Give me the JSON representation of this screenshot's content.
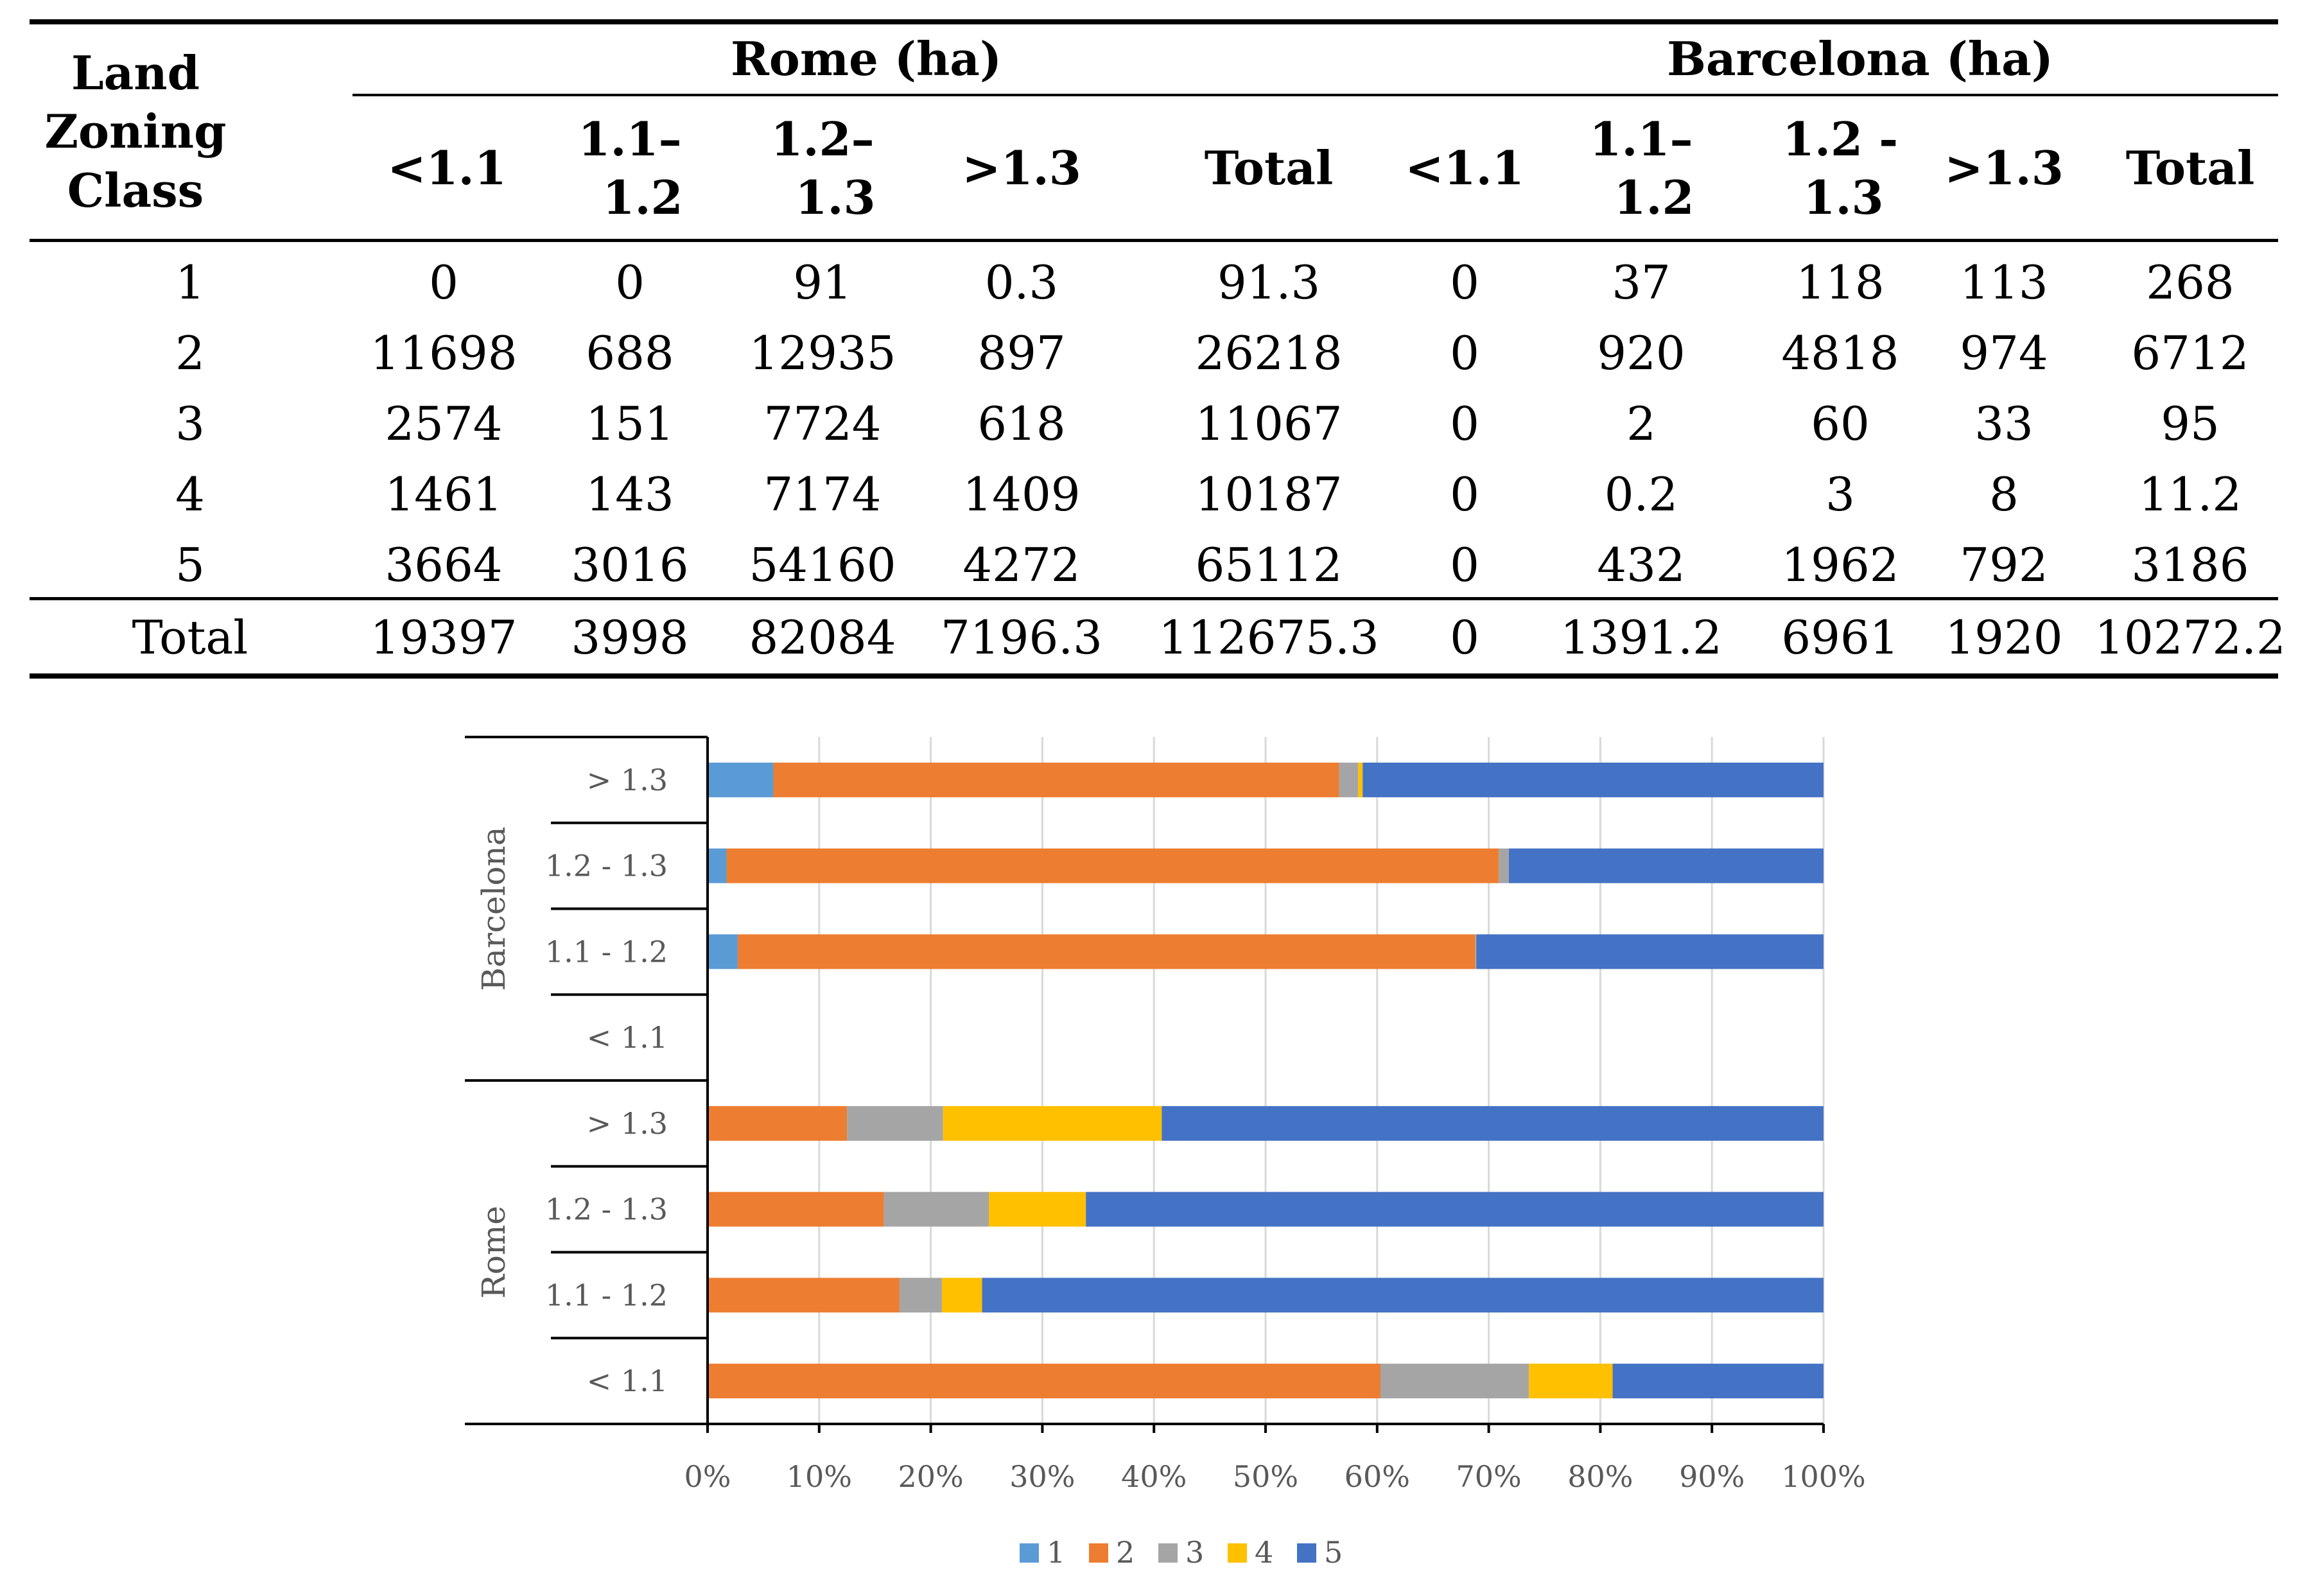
{
  "table": {
    "header": {
      "row_label": [
        "Land",
        "Zoning",
        "Class"
      ],
      "rome": "Rome (ha)",
      "barcelona": "Barcelona (ha)",
      "rome_cols": [
        [
          "<1.1"
        ],
        [
          "1.1–",
          "1.2"
        ],
        [
          "1.2–",
          "1.3"
        ],
        [
          ">1.3"
        ],
        [
          "Total"
        ]
      ],
      "barcelona_cols": [
        [
          "<1.1"
        ],
        [
          "1.1–",
          "1.2"
        ],
        [
          "1.2 -",
          "1.3"
        ],
        [
          ">1.3"
        ],
        [
          "Total"
        ]
      ]
    },
    "rows": [
      [
        "1",
        "0",
        "0",
        "91",
        "0.3",
        "91.3",
        "0",
        "37",
        "118",
        "113",
        "268"
      ],
      [
        "2",
        "11698",
        "688",
        "12935",
        "897",
        "26218",
        "0",
        "920",
        "4818",
        "974",
        "6712"
      ],
      [
        "3",
        "2574",
        "151",
        "7724",
        "618",
        "11067",
        "0",
        "2",
        "60",
        "33",
        "95"
      ],
      [
        "4",
        "1461",
        "143",
        "7174",
        "1409",
        "10187",
        "0",
        "0.2",
        "3",
        "8",
        "11.2"
      ],
      [
        "5",
        "3664",
        "3016",
        "54160",
        "4272",
        "65112",
        "0",
        "432",
        "1962",
        "792",
        "3186"
      ]
    ],
    "total_row": [
      "Total",
      "19397",
      "3998",
      "82084",
      "7196.3",
      "112675.3",
      "0",
      "1391.2",
      "6961",
      "1920",
      "10272.2"
    ]
  },
  "chart_data": {
    "type": "bar",
    "orientation": "horizontal",
    "stacking": "percent",
    "title": "",
    "xlabel": "",
    "ylabel": "",
    "xlim": [
      0,
      100
    ],
    "x_ticks": [
      "0%",
      "10%",
      "20%",
      "30%",
      "40%",
      "50%",
      "60%",
      "70%",
      "80%",
      "90%",
      "100%"
    ],
    "groups": [
      {
        "name": "Barcelona",
        "categories": [
          "> 1.3",
          "1.2 - 1.3",
          "1.1 - 1.2",
          "< 1.1"
        ]
      },
      {
        "name": "Rome",
        "categories": [
          "> 1.3",
          "1.2 - 1.3",
          "1.1 - 1.2",
          "< 1.1"
        ]
      }
    ],
    "categories": [
      "Barcelona > 1.3",
      "Barcelona 1.2 - 1.3",
      "Barcelona 1.1 - 1.2",
      "Barcelona < 1.1",
      "Rome > 1.3",
      "Rome 1.2 - 1.3",
      "Rome 1.1 - 1.2",
      "Rome < 1.1"
    ],
    "series": [
      {
        "name": "1",
        "color": "#5B9BD5",
        "values": [
          5.9,
          1.7,
          2.7,
          0,
          0,
          0,
          0,
          0
        ]
      },
      {
        "name": "2",
        "color": "#ED7D31",
        "values": [
          50.7,
          69.2,
          66.1,
          0,
          12.5,
          15.8,
          17.2,
          60.3
        ]
      },
      {
        "name": "3",
        "color": "#A5A5A5",
        "values": [
          1.7,
          0.9,
          0.1,
          0,
          8.6,
          9.4,
          3.8,
          13.3
        ]
      },
      {
        "name": "4",
        "color": "#FFC000",
        "values": [
          0.4,
          0.0,
          0.0,
          0,
          19.6,
          8.7,
          3.6,
          7.5
        ]
      },
      {
        "name": "5",
        "color": "#4472C4",
        "values": [
          41.3,
          28.2,
          31.1,
          0,
          59.3,
          66.1,
          75.4,
          18.9
        ]
      }
    ],
    "legend": {
      "position": "bottom",
      "entries": [
        "1",
        "2",
        "3",
        "4",
        "5"
      ]
    }
  }
}
